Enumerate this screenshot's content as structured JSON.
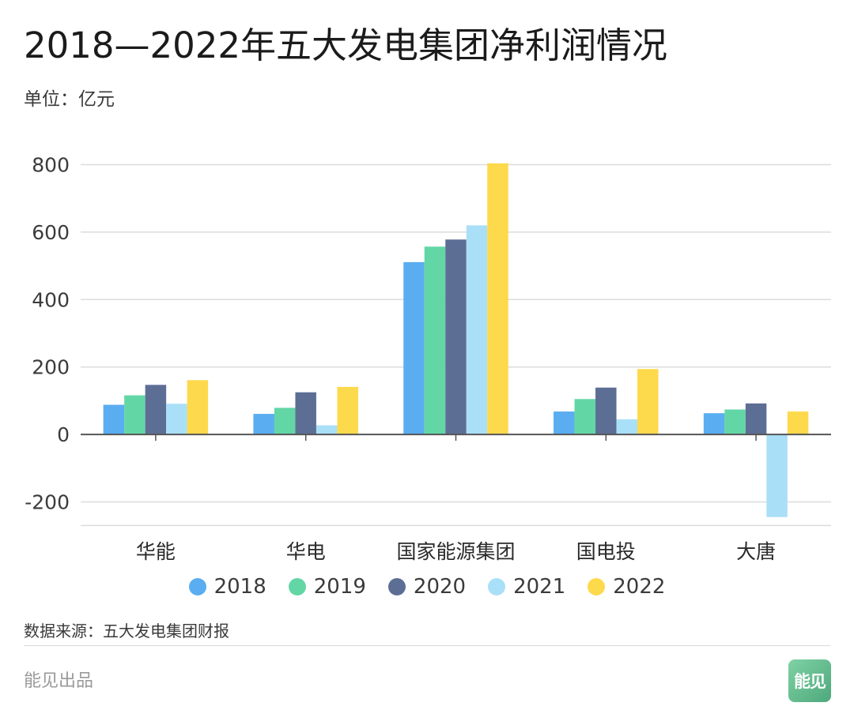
{
  "title": "2018—2022年五大发电集团净利润情况",
  "unit_label": "单位：亿元",
  "source_label": "数据来源：五大发电集团财报",
  "footer_label": "能见出品",
  "logo_text": "能见",
  "colors": {
    "2018": "#5aadf0",
    "2019": "#63d6a6",
    "2020": "#5d6e95",
    "2021": "#aadff8",
    "2022": "#fdd94c",
    "grid": "#dcdcdc",
    "axis": "#555555",
    "logo": "#5cb88a"
  },
  "chart_data": {
    "type": "bar",
    "title": "2018—2022年五大发电集团净利润情况",
    "ylabel": "",
    "xlabel": "",
    "categories": [
      "华能",
      "华电",
      "国家能源集团",
      "国电投",
      "大唐"
    ],
    "ylim": [
      -270,
      800
    ],
    "yticks": [
      -200,
      0,
      200,
      400,
      600,
      800
    ],
    "grid": true,
    "legend_position": "bottom",
    "series": [
      {
        "name": "2018",
        "values": [
          88,
          61,
          511,
          68,
          63
        ]
      },
      {
        "name": "2019",
        "values": [
          116,
          79,
          557,
          105,
          74
        ]
      },
      {
        "name": "2020",
        "values": [
          147,
          125,
          578,
          139,
          92
        ]
      },
      {
        "name": "2021",
        "values": [
          91,
          27,
          620,
          45,
          -245
        ]
      },
      {
        "name": "2022",
        "values": [
          161,
          141,
          804,
          194,
          68
        ]
      }
    ]
  }
}
